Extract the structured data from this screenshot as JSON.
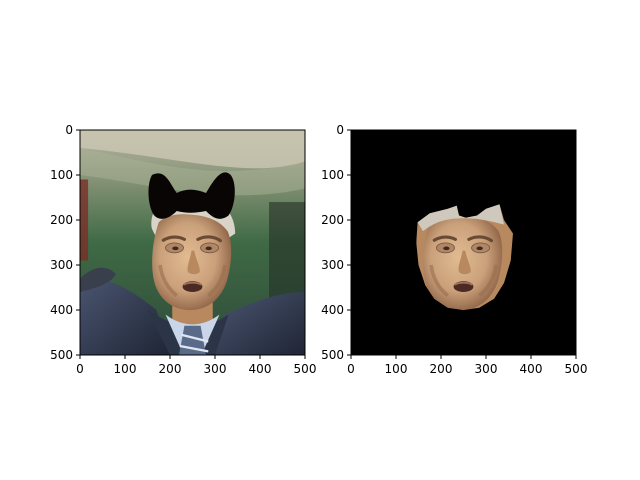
{
  "chart_data": [
    {
      "type": "image",
      "title": "",
      "xlabel": "",
      "ylabel": "",
      "xlim": [
        0,
        500
      ],
      "ylim": [
        500,
        0
      ],
      "xticks": [
        "0",
        "100",
        "200",
        "300",
        "400",
        "500"
      ],
      "yticks": [
        "0",
        "100",
        "200",
        "300",
        "400",
        "500"
      ],
      "content": "portrait photo of a man in suit and tie with an opaque bow-tie shaped mask over the forehead",
      "mask_shape": "bow-tie",
      "mask_color": "#0a0505"
    },
    {
      "type": "image",
      "title": "",
      "xlabel": "",
      "ylabel": "",
      "xlim": [
        0,
        500
      ],
      "ylim": [
        500,
        0
      ],
      "xticks": [
        "0",
        "100",
        "200",
        "300",
        "400",
        "500"
      ],
      "yticks": [
        "0",
        "100",
        "200",
        "300",
        "400",
        "500"
      ],
      "content": "segmented face region on black background",
      "background_color": "#000000"
    }
  ],
  "colors": {
    "skin": "#c9a07a",
    "skin_shadow": "#8a6044",
    "hair": "#d8d4c8",
    "background_green": "#3f6a45",
    "suit": "#2c3447",
    "shirt": "#c9d6ea",
    "tie": "#5a6b8a",
    "mask": "#0a0505"
  }
}
